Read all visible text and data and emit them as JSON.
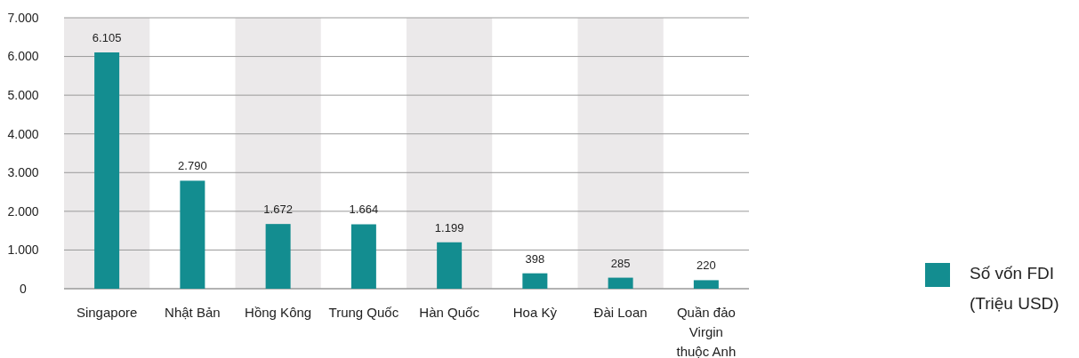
{
  "chart_data": {
    "type": "bar",
    "categories": [
      "Singapore",
      "Nhật Bản",
      "Hồng Kông",
      "Trung Quốc",
      "Hàn Quốc",
      "Hoa Kỳ",
      "Đài Loan",
      "Quần đảo Virgin thuộc Anh"
    ],
    "series": [
      {
        "name": "Số vốn FDI (Triệu USD)",
        "color": "#138d90",
        "values": [
          6105,
          2790,
          1672,
          1664,
          1199,
          398,
          285,
          220
        ],
        "value_labels": [
          "6.105",
          "2.790",
          "1.672",
          "1.664",
          "1.199",
          "398",
          "285",
          "220"
        ]
      }
    ],
    "ylim": [
      0,
      7000
    ],
    "yticks": [
      0,
      {
        "value": 1000,
        "label": "1.000"
      },
      {
        "value": 2000,
        "label": "2.000"
      },
      {
        "value": 3000,
        "label": "3.000"
      },
      {
        "value": 4000,
        "label": "4.000"
      },
      {
        "value": 5000,
        "label": "5.000"
      },
      {
        "value": 6000,
        "label": "6.000"
      },
      {
        "value": 7000,
        "label": "7.000"
      }
    ],
    "grid": "y",
    "legend": "right"
  }
}
